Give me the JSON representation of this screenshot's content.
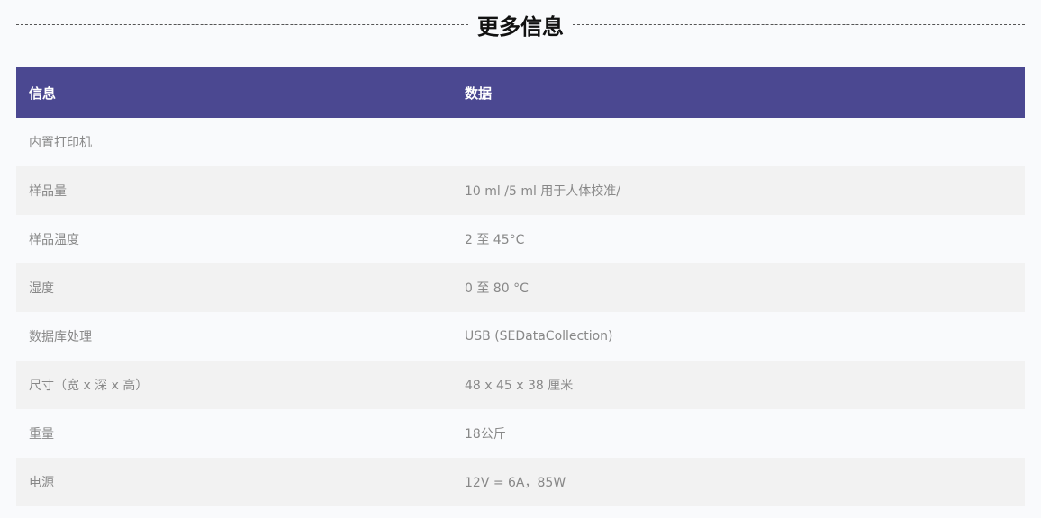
{
  "section_title": "更多信息",
  "table": {
    "headers": [
      "信息",
      "数据"
    ],
    "rows": [
      [
        "内置打印机",
        ""
      ],
      [
        "样品量",
        "10 ml /5 ml 用于人体校准/"
      ],
      [
        "样品温度",
        "2 至 45°C"
      ],
      [
        "湿度",
        "0 至 80 °C"
      ],
      [
        "数据库处理",
        "USB (SEDataCollection)"
      ],
      [
        "尺寸（宽 x 深 x 高）",
        "48 x 45 x 38 厘米"
      ],
      [
        "重量",
        "18公斤"
      ],
      [
        "电源",
        "12V = 6A，85W"
      ]
    ]
  },
  "colors": {
    "header_bg": "#4b4891",
    "row_alt": "#f2f2f2",
    "page_bg": "#f9fafc"
  }
}
